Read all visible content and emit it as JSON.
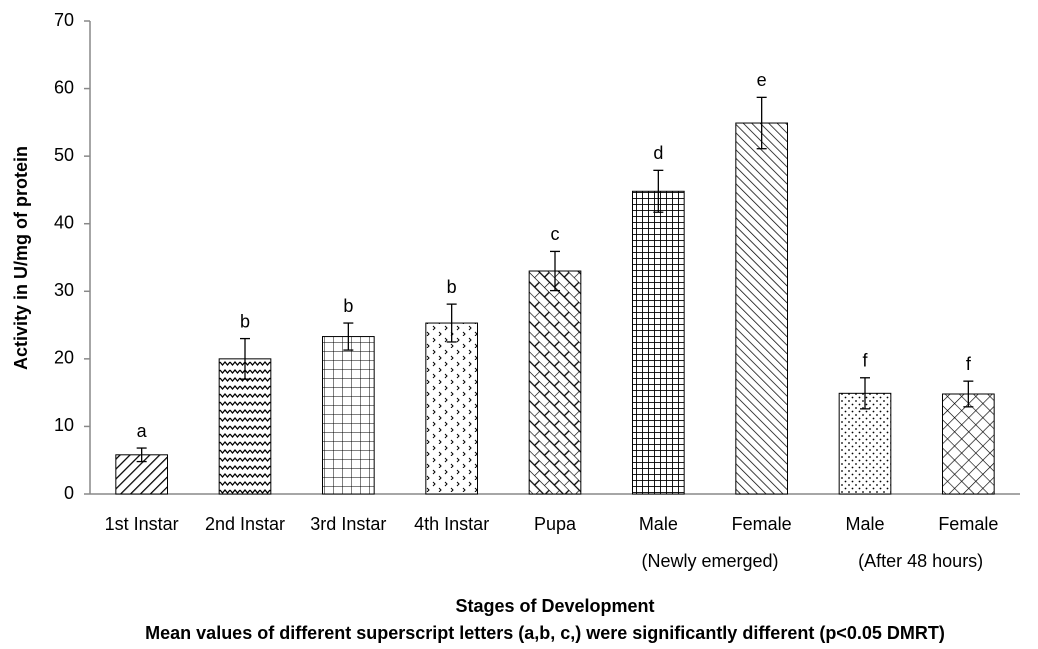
{
  "chart_data": {
    "type": "bar",
    "ylabel": "Activity in U/mg of protein",
    "xlabel": "Stages of Development",
    "footnote": "Mean values of different superscript letters (a,b, c,) were significantly different (p<0.05 DMRT)",
    "categories": [
      "1st Instar",
      "2nd Instar",
      "3rd Instar",
      "4th Instar",
      "Pupa",
      "Male",
      "Female",
      "Male",
      "Female"
    ],
    "groups": [
      "(Newly emerged)",
      "(After 48 hours)"
    ],
    "values": [
      5.8,
      20,
      23.3,
      25.3,
      33,
      44.8,
      54.9,
      14.9,
      14.8
    ],
    "errors": [
      1,
      3,
      2,
      2.8,
      2.9,
      3.1,
      3.8,
      2.3,
      1.9
    ],
    "letters": [
      "a",
      "b",
      "b",
      "b",
      "c",
      "d",
      "e",
      "f",
      "f"
    ],
    "color": "#000000",
    "ylim": [
      0,
      70
    ],
    "yticks": [
      0,
      10,
      20,
      30,
      40,
      50,
      60,
      70
    ],
    "grid": false
  }
}
